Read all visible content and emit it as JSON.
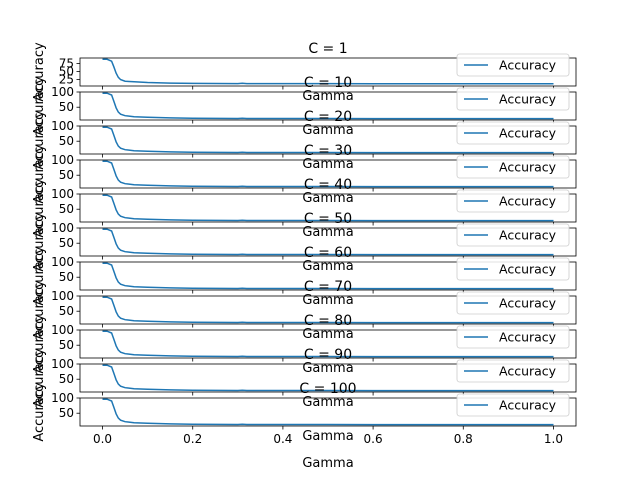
{
  "figure": {
    "xlabel": "Gamma",
    "ylabel": "Accuracy",
    "legend_label": "Accuracy",
    "line_color": "#1f77b4",
    "x_ticks": [
      "0.0",
      "0.2",
      "0.4",
      "0.6",
      "0.8",
      "1.0"
    ]
  },
  "chart_data": [
    {
      "type": "line",
      "title": "C = 1",
      "xlabel": "Gamma",
      "ylabel": "Accuracy",
      "legend": "top-right",
      "grid": false,
      "xlim": [
        -0.05,
        1.05
      ],
      "ylim": [
        5,
        92
      ],
      "y_ticks": [
        25,
        50,
        75
      ],
      "x": [
        0.0,
        0.01,
        0.02,
        0.025,
        0.03,
        0.035,
        0.04,
        0.05,
        0.07,
        0.1,
        0.15,
        0.2,
        0.3,
        0.31,
        0.32,
        0.4,
        0.5,
        0.6,
        0.7,
        0.8,
        0.9,
        1.0
      ],
      "series": [
        {
          "name": "Accuracy",
          "values": [
            88,
            88,
            82,
            65,
            45,
            32,
            25,
            20,
            18,
            16,
            14,
            13,
            12.5,
            13.5,
            12.5,
            12.5,
            12.5,
            12,
            12,
            12,
            12,
            12
          ]
        }
      ]
    },
    {
      "type": "line",
      "title": "C = 10",
      "xlabel": "Gamma",
      "ylabel": "Accuracy",
      "legend": "top-right",
      "grid": false,
      "xlim": [
        -0.05,
        1.05
      ],
      "ylim": [
        8,
        100
      ],
      "y_ticks": [
        50,
        100
      ],
      "x": [
        0.0,
        0.01,
        0.02,
        0.025,
        0.03,
        0.035,
        0.04,
        0.05,
        0.07,
        0.1,
        0.15,
        0.2,
        0.3,
        0.31,
        0.32,
        0.4,
        0.5,
        0.6,
        0.7,
        0.8,
        0.9,
        1.0
      ],
      "series": [
        {
          "name": "Accuracy",
          "values": [
            96,
            96,
            90,
            70,
            48,
            34,
            27,
            22,
            19,
            17,
            15,
            14,
            13,
            14,
            13,
            13,
            13,
            12.5,
            12.5,
            12.5,
            12.5,
            12.5
          ]
        }
      ]
    },
    {
      "type": "line",
      "title": "C = 20",
      "xlabel": "Gamma",
      "ylabel": "Accuracy",
      "legend": "top-right",
      "grid": false,
      "xlim": [
        -0.05,
        1.05
      ],
      "ylim": [
        8,
        100
      ],
      "y_ticks": [
        50,
        100
      ],
      "x": [
        0.0,
        0.01,
        0.02,
        0.025,
        0.03,
        0.035,
        0.04,
        0.05,
        0.07,
        0.1,
        0.15,
        0.2,
        0.3,
        0.31,
        0.32,
        0.4,
        0.5,
        0.6,
        0.7,
        0.8,
        0.9,
        1.0
      ],
      "series": [
        {
          "name": "Accuracy",
          "values": [
            96,
            96,
            90,
            70,
            48,
            34,
            27,
            22,
            19,
            17,
            15,
            14,
            13,
            14,
            13,
            13,
            13,
            12.5,
            12.5,
            12.5,
            12.5,
            12.5
          ]
        }
      ]
    },
    {
      "type": "line",
      "title": "C = 30",
      "xlabel": "Gamma",
      "ylabel": "Accuracy",
      "legend": "top-right",
      "grid": false,
      "xlim": [
        -0.05,
        1.05
      ],
      "ylim": [
        8,
        100
      ],
      "y_ticks": [
        50,
        100
      ],
      "x": [
        0.0,
        0.01,
        0.02,
        0.025,
        0.03,
        0.035,
        0.04,
        0.05,
        0.07,
        0.1,
        0.15,
        0.2,
        0.3,
        0.31,
        0.32,
        0.4,
        0.5,
        0.6,
        0.7,
        0.8,
        0.9,
        1.0
      ],
      "series": [
        {
          "name": "Accuracy",
          "values": [
            96,
            96,
            90,
            70,
            48,
            34,
            27,
            22,
            19,
            17,
            15,
            14,
            13,
            14,
            13,
            13,
            13,
            12.5,
            12.5,
            12.5,
            12.5,
            12.5
          ]
        }
      ]
    },
    {
      "type": "line",
      "title": "C = 40",
      "xlabel": "Gamma",
      "ylabel": "Accuracy",
      "legend": "top-right",
      "grid": false,
      "xlim": [
        -0.05,
        1.05
      ],
      "ylim": [
        8,
        100
      ],
      "y_ticks": [
        50,
        100
      ],
      "x": [
        0.0,
        0.01,
        0.02,
        0.025,
        0.03,
        0.035,
        0.04,
        0.05,
        0.07,
        0.1,
        0.15,
        0.2,
        0.3,
        0.31,
        0.32,
        0.4,
        0.5,
        0.6,
        0.7,
        0.8,
        0.9,
        1.0
      ],
      "series": [
        {
          "name": "Accuracy",
          "values": [
            96,
            96,
            90,
            70,
            48,
            34,
            27,
            22,
            19,
            17,
            15,
            14,
            13,
            14,
            13,
            13,
            13,
            12.5,
            12.5,
            12.5,
            12.5,
            12.5
          ]
        }
      ]
    },
    {
      "type": "line",
      "title": "C = 50",
      "xlabel": "Gamma",
      "ylabel": "Accuracy",
      "legend": "top-right",
      "grid": false,
      "xlim": [
        -0.05,
        1.05
      ],
      "ylim": [
        8,
        100
      ],
      "y_ticks": [
        50,
        100
      ],
      "x": [
        0.0,
        0.01,
        0.02,
        0.025,
        0.03,
        0.035,
        0.04,
        0.05,
        0.07,
        0.1,
        0.15,
        0.2,
        0.3,
        0.31,
        0.32,
        0.4,
        0.5,
        0.6,
        0.7,
        0.8,
        0.9,
        1.0
      ],
      "series": [
        {
          "name": "Accuracy",
          "values": [
            96,
            96,
            90,
            70,
            48,
            34,
            27,
            22,
            19,
            17,
            15,
            14,
            13,
            14,
            13,
            13,
            13,
            12.5,
            12.5,
            12.5,
            12.5,
            12.5
          ]
        }
      ]
    },
    {
      "type": "line",
      "title": "C = 60",
      "xlabel": "Gamma",
      "ylabel": "Accuracy",
      "legend": "top-right",
      "grid": false,
      "xlim": [
        -0.05,
        1.05
      ],
      "ylim": [
        8,
        100
      ],
      "y_ticks": [
        50,
        100
      ],
      "x": [
        0.0,
        0.01,
        0.02,
        0.025,
        0.03,
        0.035,
        0.04,
        0.05,
        0.07,
        0.1,
        0.15,
        0.2,
        0.3,
        0.31,
        0.32,
        0.4,
        0.5,
        0.6,
        0.7,
        0.8,
        0.9,
        1.0
      ],
      "series": [
        {
          "name": "Accuracy",
          "values": [
            96,
            96,
            90,
            70,
            48,
            34,
            27,
            22,
            19,
            17,
            15,
            14,
            13,
            14,
            13,
            13,
            13,
            12.5,
            12.5,
            12.5,
            12.5,
            12.5
          ]
        }
      ]
    },
    {
      "type": "line",
      "title": "C = 70",
      "xlabel": "Gamma",
      "ylabel": "Accuracy",
      "legend": "top-right",
      "grid": false,
      "xlim": [
        -0.05,
        1.05
      ],
      "ylim": [
        8,
        100
      ],
      "y_ticks": [
        50,
        100
      ],
      "x": [
        0.0,
        0.01,
        0.02,
        0.025,
        0.03,
        0.035,
        0.04,
        0.05,
        0.07,
        0.1,
        0.15,
        0.2,
        0.3,
        0.31,
        0.32,
        0.4,
        0.5,
        0.6,
        0.7,
        0.8,
        0.9,
        1.0
      ],
      "series": [
        {
          "name": "Accuracy",
          "values": [
            96,
            96,
            90,
            70,
            48,
            34,
            27,
            22,
            19,
            17,
            15,
            14,
            13,
            14,
            13,
            13,
            13,
            12.5,
            12.5,
            12.5,
            12.5,
            12.5
          ]
        }
      ]
    },
    {
      "type": "line",
      "title": "C = 80",
      "xlabel": "Gamma",
      "ylabel": "Accuracy",
      "legend": "top-right",
      "grid": false,
      "xlim": [
        -0.05,
        1.05
      ],
      "ylim": [
        8,
        100
      ],
      "y_ticks": [
        50,
        100
      ],
      "x": [
        0.0,
        0.01,
        0.02,
        0.025,
        0.03,
        0.035,
        0.04,
        0.05,
        0.07,
        0.1,
        0.15,
        0.2,
        0.3,
        0.31,
        0.32,
        0.4,
        0.5,
        0.6,
        0.7,
        0.8,
        0.9,
        1.0
      ],
      "series": [
        {
          "name": "Accuracy",
          "values": [
            96,
            96,
            90,
            70,
            48,
            34,
            27,
            22,
            19,
            17,
            15,
            14,
            13,
            14,
            13,
            13,
            13,
            12.5,
            12.5,
            12.5,
            12.5,
            12.5
          ]
        }
      ]
    },
    {
      "type": "line",
      "title": "C = 90",
      "xlabel": "Gamma",
      "ylabel": "Accuracy",
      "legend": "top-right",
      "grid": false,
      "xlim": [
        -0.05,
        1.05
      ],
      "ylim": [
        8,
        100
      ],
      "y_ticks": [
        50,
        100
      ],
      "x": [
        0.0,
        0.01,
        0.02,
        0.025,
        0.03,
        0.035,
        0.04,
        0.05,
        0.07,
        0.1,
        0.15,
        0.2,
        0.3,
        0.31,
        0.32,
        0.4,
        0.5,
        0.6,
        0.7,
        0.8,
        0.9,
        1.0
      ],
      "series": [
        {
          "name": "Accuracy",
          "values": [
            96,
            96,
            90,
            70,
            48,
            34,
            27,
            22,
            19,
            17,
            15,
            14,
            13,
            14,
            13,
            13,
            13,
            12.5,
            12.5,
            12.5,
            12.5,
            12.5
          ]
        }
      ]
    },
    {
      "type": "line",
      "title": "C = 100",
      "xlabel": "Gamma",
      "ylabel": "Accuracy",
      "legend": "top-right",
      "grid": false,
      "xlim": [
        -0.05,
        1.05
      ],
      "ylim": [
        8,
        100
      ],
      "y_ticks": [
        50,
        100
      ],
      "x": [
        0.0,
        0.01,
        0.02,
        0.025,
        0.03,
        0.035,
        0.04,
        0.05,
        0.07,
        0.1,
        0.15,
        0.2,
        0.3,
        0.31,
        0.32,
        0.4,
        0.5,
        0.6,
        0.7,
        0.8,
        0.9,
        1.0
      ],
      "series": [
        {
          "name": "Accuracy",
          "values": [
            96,
            96,
            90,
            70,
            48,
            34,
            27,
            22,
            19,
            17,
            15,
            14,
            13,
            14,
            13,
            13,
            13,
            12.5,
            12.5,
            12.5,
            12.5,
            12.5
          ]
        }
      ]
    }
  ]
}
